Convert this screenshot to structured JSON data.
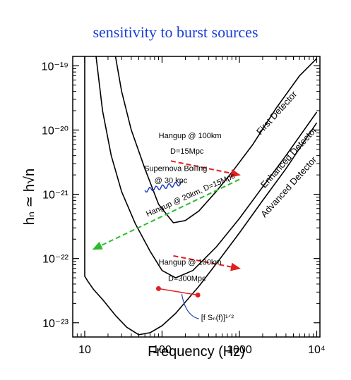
{
  "title": "sensitivity to burst sources",
  "chart_data": {
    "type": "line",
    "title": "sensitivity to burst sources",
    "xlabel": "Frequency (Hz)",
    "ylabel": "hₙ ≃ h√n",
    "x_scale": "log",
    "y_scale": "log",
    "xlim": [
      7,
      11000
    ],
    "ylim": [
      6e-24,
      1.4e-19
    ],
    "x_ticks": [
      {
        "value": 10,
        "label": "10"
      },
      {
        "value": 100,
        "label": "100"
      },
      {
        "value": 1000,
        "label": "1000"
      },
      {
        "value": 10000,
        "label": "10⁴"
      }
    ],
    "y_ticks": [
      {
        "value": 1e-19,
        "label": "10⁻¹⁹"
      },
      {
        "value": 1e-20,
        "label": "10⁻²⁰"
      },
      {
        "value": 1e-21,
        "label": "10⁻²¹"
      },
      {
        "value": 1e-22,
        "label": "10⁻²²"
      },
      {
        "value": 1e-23,
        "label": "10⁻²³"
      }
    ],
    "series": [
      {
        "name": "First Detector",
        "x": [
          25,
          30,
          40,
          60,
          90,
          140,
          200,
          300,
          500,
          800,
          1500,
          3000,
          6000,
          10000
        ],
        "y": [
          1.4e-19,
          4e-20,
          1e-20,
          2.5e-21,
          7e-22,
          3.6e-22,
          3.9e-22,
          5.5e-22,
          1.1e-21,
          2.2e-21,
          6e-21,
          2.2e-20,
          7e-20,
          1.3e-19
        ]
      },
      {
        "name": "Enhanced Detector",
        "x": [
          14,
          17,
          22,
          30,
          45,
          70,
          100,
          150,
          250,
          500,
          1000,
          2000,
          4000,
          10000
        ],
        "y": [
          1.4e-19,
          2e-20,
          4e-21,
          1.1e-21,
          3.5e-22,
          1.3e-22,
          6.5e-23,
          5e-23,
          6.5e-23,
          1.5e-22,
          4.2e-22,
          1.3e-21,
          4e-21,
          1.9e-20
        ]
      },
      {
        "name": "Advanced Detector",
        "x": [
          10,
          10,
          11,
          13,
          17,
          25,
          35,
          50,
          70,
          100,
          150,
          300,
          600,
          1000,
          2000,
          4000,
          10000
        ],
        "y": [
          1.4e-19,
          5.3e-23,
          4.4e-23,
          3.3e-23,
          2.3e-23,
          1.3e-23,
          8.5e-24,
          6.5e-24,
          7e-24,
          9e-24,
          1.4e-23,
          3.7e-23,
          1.1e-22,
          2.5e-22,
          8e-22,
          2.5e-21,
          1.3e-20
        ]
      }
    ],
    "annotations": [
      {
        "text": "Hangup @ 100km",
        "x": 230,
        "y": 7.5e-21,
        "angle": 0
      },
      {
        "text": "D=15Mpc",
        "x": 210,
        "y": 4.3e-21,
        "angle": 0
      },
      {
        "text": "Supernova Boiling",
        "x": 150,
        "y": 2.3e-21,
        "angle": 0
      },
      {
        "text": "@ 30 kpc",
        "x": 130,
        "y": 1.5e-21,
        "angle": 0
      },
      {
        "text": "Hangup @ 20km, D=15Mpc",
        "x": 240,
        "y": 9e-22,
        "angle": -24
      },
      {
        "text": "Hangup @ 100km",
        "x": 230,
        "y": 8e-23,
        "angle": 0
      },
      {
        "text": "D=300Mpc",
        "x": 210,
        "y": 4.5e-23,
        "angle": 0
      },
      {
        "text": "[f Sₙ(f)]¹ᐟ²",
        "x": 520,
        "y": 1.1e-23,
        "angle": 0
      }
    ],
    "curve_labels": [
      "First Detector",
      "Enhanced Detector",
      "Advanced Detector"
    ],
    "arrows": [
      {
        "name": "hangup-100km-15mpc",
        "color": "#e02020",
        "x1": 130,
        "y1": 3.3e-21,
        "x2": 1000,
        "y2": 2e-21
      },
      {
        "name": "hangup-20km-15mpc",
        "color": "#2dbb2d",
        "x1": 1000,
        "y1": 1.7e-21,
        "x2": 13,
        "y2": 1.4e-22
      },
      {
        "name": "hangup-100km-300mpc",
        "color": "#e02020",
        "x1": 140,
        "y1": 1.1e-22,
        "x2": 1000,
        "y2": 7e-23
      }
    ],
    "markers": [
      {
        "x": 90,
        "y": 3.4e-23,
        "color": "#e02020"
      },
      {
        "x": 290,
        "y": 2.7e-23,
        "color": "#e02020"
      }
    ],
    "grid": false,
    "legend": "none"
  }
}
